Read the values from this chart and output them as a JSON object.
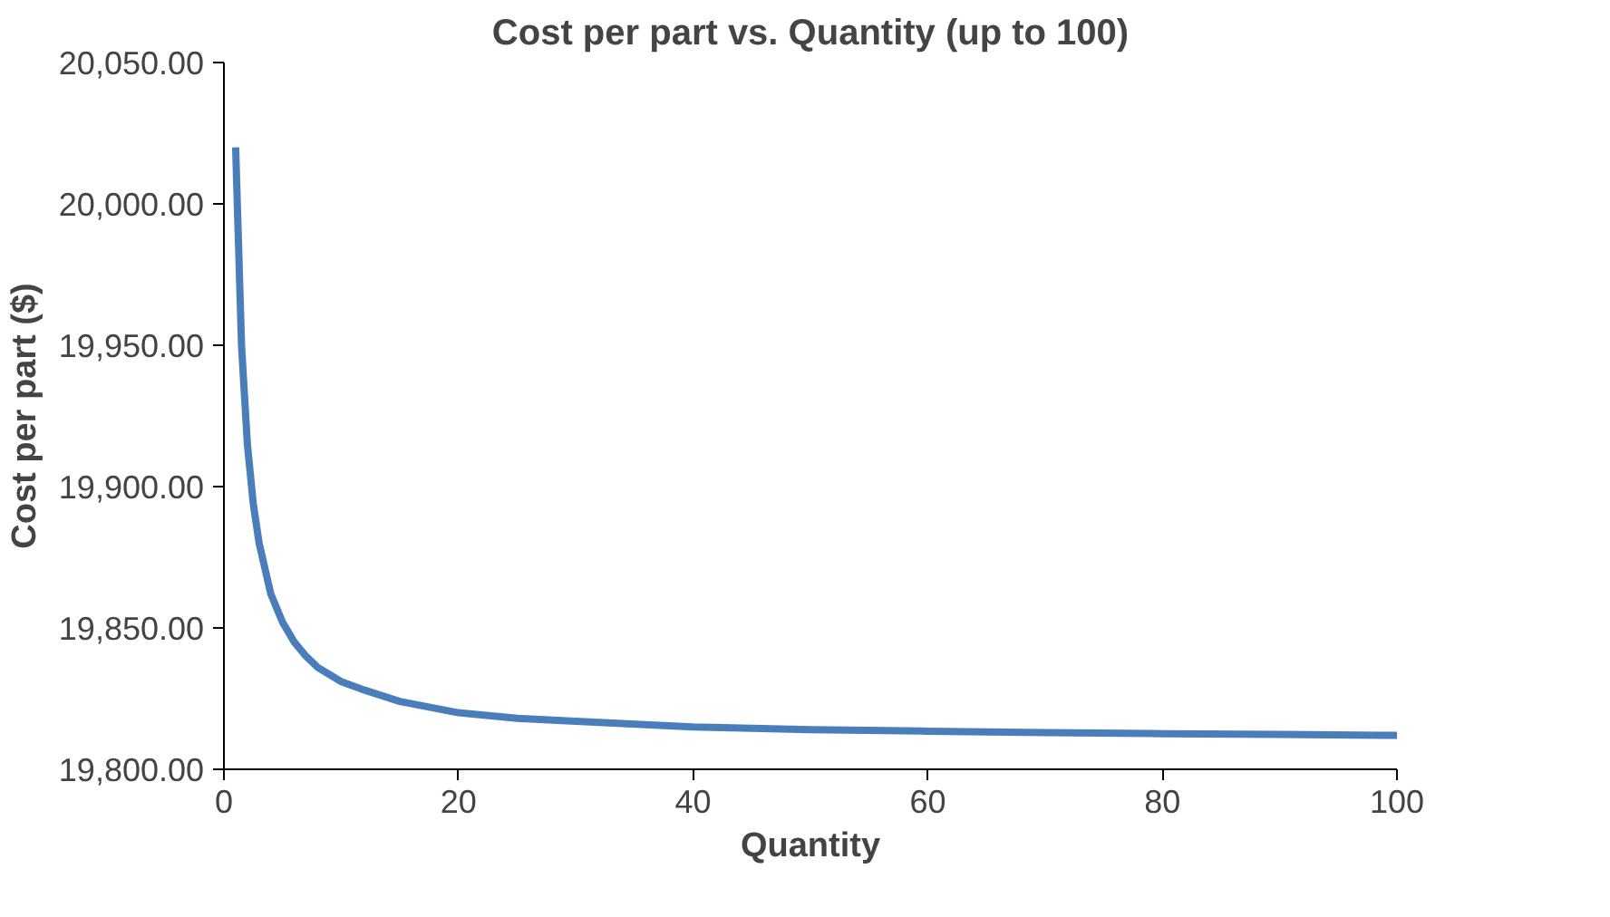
{
  "chart_data": {
    "type": "line",
    "title": "Cost per part vs. Quantity (up to 100)",
    "xlabel": "Quantity",
    "ylabel": "Cost per part ($)",
    "x": [
      1,
      1.5,
      2,
      2.5,
      3,
      4,
      5,
      6,
      7,
      8,
      10,
      12,
      15,
      20,
      25,
      30,
      40,
      50,
      60,
      70,
      80,
      90,
      100
    ],
    "series": [
      {
        "color": "#4a7ebb",
        "values": [
          20020,
          19950,
          19915,
          19894,
          19880,
          19862,
          19852,
          19845,
          19840,
          19836,
          19831,
          19828,
          19824,
          19820,
          19818,
          19817,
          19815,
          19814,
          19813.5,
          19813,
          19812.6,
          19812.3,
          19812
        ]
      }
    ],
    "xlim": [
      0,
      100
    ],
    "xticks": [
      0,
      20,
      40,
      60,
      80,
      100
    ],
    "ylim": [
      19800,
      20050
    ],
    "yticks": [
      {
        "value": 19800,
        "label": "19,800.00"
      },
      {
        "value": 19850,
        "label": "19,850.00"
      },
      {
        "value": 19900,
        "label": "19,900.00"
      },
      {
        "value": 19950,
        "label": "19,950.00"
      },
      {
        "value": 20000,
        "label": "20,000.00"
      },
      {
        "value": 20050,
        "label": "20,050.00"
      }
    ],
    "grid": false,
    "marker": "none",
    "line_style": "solid"
  }
}
